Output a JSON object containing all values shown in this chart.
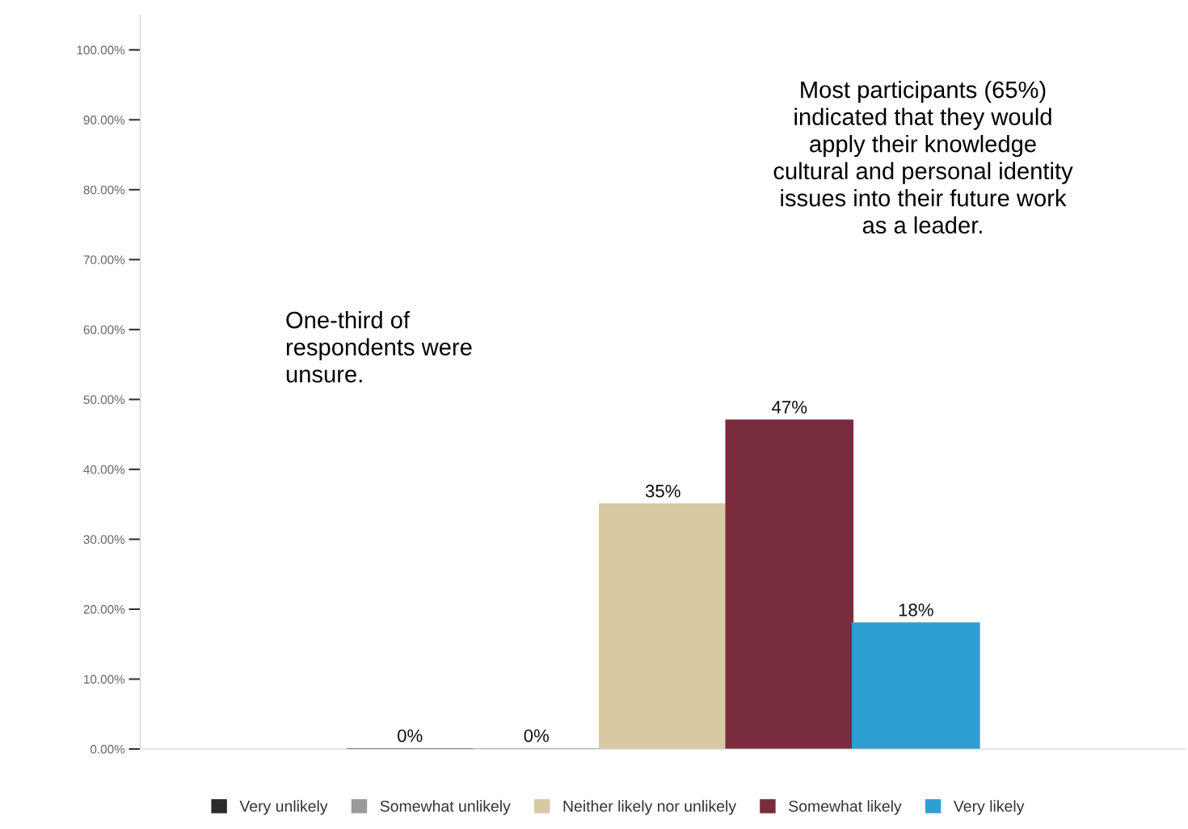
{
  "chart_data": {
    "type": "bar",
    "categories": [
      null
    ],
    "series": [
      {
        "name": "Very unlikely",
        "color": "#2b2b2b",
        "values": [
          0
        ],
        "value_labels": [
          "0%"
        ]
      },
      {
        "name": "Somewhat unlikely",
        "color": "#9a9a9a",
        "values": [
          0
        ],
        "value_labels": [
          "0%"
        ]
      },
      {
        "name": "Neither likely nor unlikely",
        "color": "#d9c9a3",
        "values": [
          35
        ],
        "value_labels": [
          "35%"
        ]
      },
      {
        "name": "Somewhat likely",
        "color": "#7a2c3f",
        "values": [
          47
        ],
        "value_labels": [
          "47%"
        ]
      },
      {
        "name": "Very likely",
        "color": "#2e9fd3",
        "values": [
          18
        ],
        "value_labels": [
          "18%"
        ]
      }
    ],
    "ylim": [
      0,
      105
    ],
    "yticks": [
      {
        "value": 0,
        "label": "0.00%"
      },
      {
        "value": 10,
        "label": "10.00%"
      },
      {
        "value": 20,
        "label": "20.00%"
      },
      {
        "value": 30,
        "label": "30.00%"
      },
      {
        "value": 40,
        "label": "40.00%"
      },
      {
        "value": 50,
        "label": "50.00%"
      },
      {
        "value": 60,
        "label": "60.00%"
      },
      {
        "value": 70,
        "label": "70.00%"
      },
      {
        "value": 80,
        "label": "80.00%"
      },
      {
        "value": 90,
        "label": "90.00%"
      },
      {
        "value": 100,
        "label": "100.00%"
      }
    ],
    "annotations": [
      "One-third of\nrespondents were\nunsure.",
      "Most participants (65%)\nindicated that they would\napply their knowledge\ncultural and personal identity\nissues into their future work\nas a leader."
    ],
    "grid": false,
    "legend": "bottom",
    "tick_labels": "y"
  }
}
